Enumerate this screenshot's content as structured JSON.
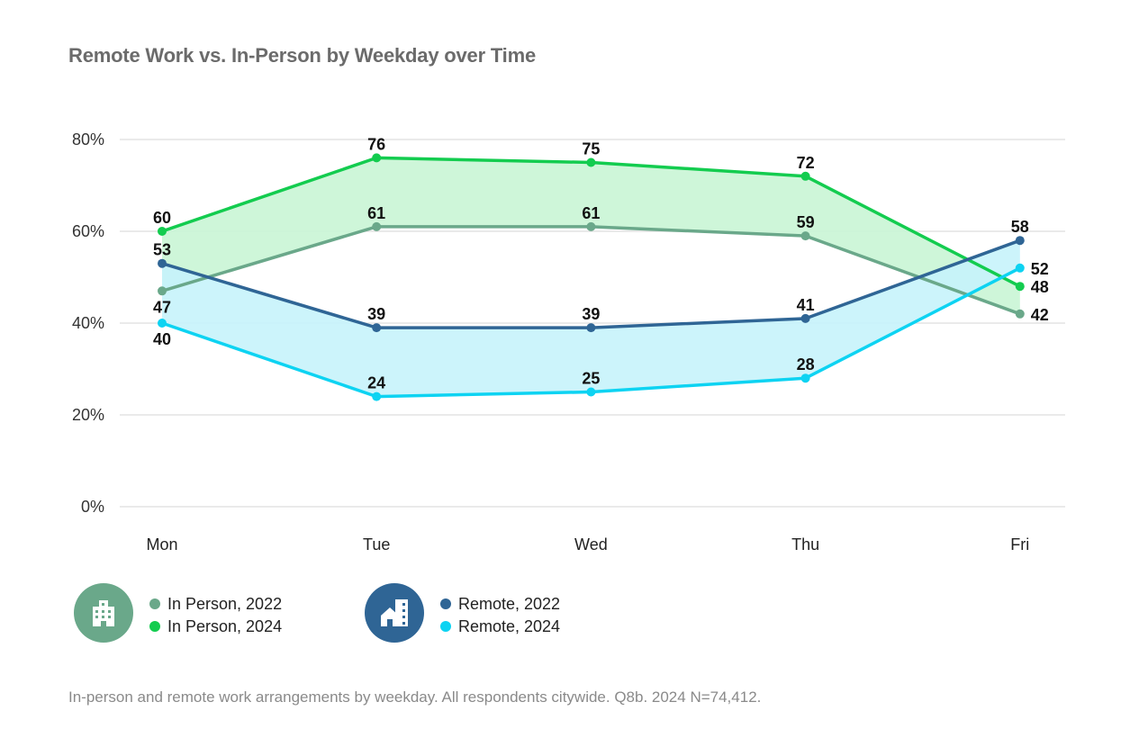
{
  "title": "Remote Work vs. In-Person by Weekday over Time",
  "footnote": "In-person and remote work arrangements by weekday. All respondents citywide. Q8b. 2024 N=74,412.",
  "legend": {
    "in_person": {
      "icon": "office-building-icon",
      "color": "#6aa88a",
      "items": [
        {
          "label": "In Person, 2022",
          "color": "#6aa88a"
        },
        {
          "label": "In Person, 2024",
          "color": "#13cc4f"
        }
      ]
    },
    "remote": {
      "icon": "home-building-icon",
      "color": "#2f6595",
      "items": [
        {
          "label": "Remote, 2022",
          "color": "#2f6595"
        },
        {
          "label": "Remote, 2024",
          "color": "#0dd3f2"
        }
      ]
    }
  },
  "chart_data": {
    "type": "line",
    "categories": [
      "Mon",
      "Tue",
      "Wed",
      "Thu",
      "Fri"
    ],
    "ylim": [
      0,
      80
    ],
    "yticks": [
      "0%",
      "20%",
      "40%",
      "60%",
      "80%"
    ],
    "grid": true,
    "series": [
      {
        "name": "In Person, 2022",
        "values": [
          47,
          61,
          61,
          59,
          42
        ],
        "color": "#6aa88a"
      },
      {
        "name": "In Person, 2024",
        "values": [
          60,
          76,
          75,
          72,
          48
        ],
        "color": "#13cc4f"
      },
      {
        "name": "Remote, 2022",
        "values": [
          53,
          39,
          39,
          41,
          58
        ],
        "color": "#2f6595"
      },
      {
        "name": "Remote, 2024",
        "values": [
          40,
          24,
          25,
          28,
          52
        ],
        "color": "#0dd3f2"
      }
    ],
    "bands": [
      {
        "between": [
          "In Person, 2022",
          "In Person, 2024"
        ],
        "fill": "#c9f5d5"
      },
      {
        "between": [
          "Remote, 2022",
          "Remote, 2024"
        ],
        "fill": "#c7f3fb"
      }
    ]
  }
}
